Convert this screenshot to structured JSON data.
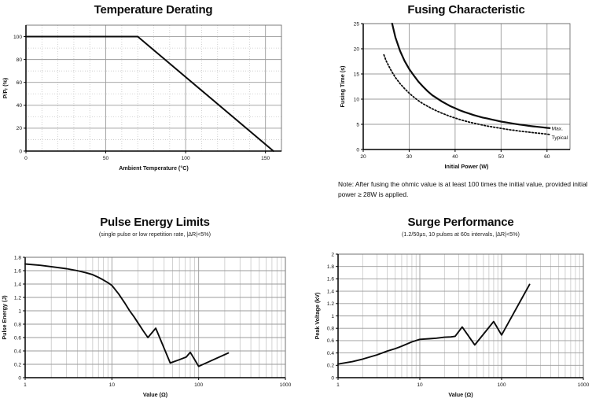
{
  "page": {
    "background": "#ffffff"
  },
  "colors": {
    "curve": "#0c0c0c",
    "grid_major": "#9b9b9b",
    "grid_minor": "#c7c7c7",
    "frame": "#6e6e6e",
    "axis": "#000000",
    "text": "#111111"
  },
  "chart_data": [
    {
      "type": "line",
      "title": "Temperature Derating",
      "subtitle": "",
      "xlabel": "Ambient Temperature (°C)",
      "ylabel": "P/Pᵣ (%)",
      "xscale": "linear",
      "xlim": [
        0,
        160
      ],
      "ylim": [
        0,
        110
      ],
      "xticks": [
        0,
        50,
        100,
        150
      ],
      "yticks": [
        0,
        20,
        40,
        60,
        80,
        100
      ],
      "x_minor_step": 10,
      "y_minor_step": 10,
      "grid_minor_style": "dotted",
      "series": [
        {
          "name": "derating-line",
          "style": "solid",
          "width": 2,
          "points": [
            [
              0,
              100
            ],
            [
              70,
              100
            ],
            [
              155,
              0
            ]
          ]
        }
      ],
      "annotations": []
    },
    {
      "type": "line",
      "title": "Fusing Characteristic",
      "subtitle": "",
      "xlabel": "Initial Power (W)",
      "ylabel": "Fusing Time (s)",
      "xscale": "linear",
      "xlim": [
        20,
        65
      ],
      "ylim": [
        0,
        25
      ],
      "xticks": [
        20,
        30,
        40,
        50,
        60
      ],
      "yticks": [
        0,
        5,
        10,
        15,
        20,
        25
      ],
      "series": [
        {
          "name": "max",
          "style": "solid",
          "width": 2.2,
          "points": [
            [
              26.3,
              25
            ],
            [
              27,
              22.3
            ],
            [
              28,
              19.6
            ],
            [
              29,
              17.6
            ],
            [
              30,
              16
            ],
            [
              31,
              14.7
            ],
            [
              32,
              13.5
            ],
            [
              33,
              12.5
            ],
            [
              34,
              11.6
            ],
            [
              35,
              10.8
            ],
            [
              36,
              10.2
            ],
            [
              37,
              9.6
            ],
            [
              38,
              9.1
            ],
            [
              39,
              8.6
            ],
            [
              40,
              8.2
            ],
            [
              41,
              7.8
            ],
            [
              42,
              7.45
            ],
            [
              43,
              7.15
            ],
            [
              44,
              6.85
            ],
            [
              45,
              6.6
            ],
            [
              46,
              6.35
            ],
            [
              47,
              6.15
            ],
            [
              48,
              5.95
            ],
            [
              49,
              5.75
            ],
            [
              50,
              5.55
            ],
            [
              51,
              5.4
            ],
            [
              52,
              5.25
            ],
            [
              53,
              5.1
            ],
            [
              54,
              4.95
            ],
            [
              55,
              4.85
            ],
            [
              56,
              4.7
            ],
            [
              57,
              4.6
            ],
            [
              58,
              4.5
            ],
            [
              59,
              4.4
            ],
            [
              60,
              4.3
            ],
            [
              60.6,
              4.25
            ]
          ]
        },
        {
          "name": "typical",
          "style": "dotted",
          "width": 1.8,
          "points": [
            [
              24.5,
              18.8
            ],
            [
              25,
              17.6
            ],
            [
              26,
              15.8
            ],
            [
              27,
              14.3
            ],
            [
              28,
              13.1
            ],
            [
              29,
              12.1
            ],
            [
              30,
              11.2
            ],
            [
              31,
              10.4
            ],
            [
              32,
              9.7
            ],
            [
              33,
              9.1
            ],
            [
              34,
              8.6
            ],
            [
              35,
              8.1
            ],
            [
              36,
              7.65
            ],
            [
              37,
              7.25
            ],
            [
              38,
              6.9
            ],
            [
              39,
              6.55
            ],
            [
              40,
              6.25
            ],
            [
              41,
              5.95
            ],
            [
              42,
              5.7
            ],
            [
              43,
              5.45
            ],
            [
              44,
              5.25
            ],
            [
              45,
              5.05
            ],
            [
              46,
              4.85
            ],
            [
              47,
              4.65
            ],
            [
              48,
              4.5
            ],
            [
              49,
              4.35
            ],
            [
              50,
              4.2
            ],
            [
              51,
              4.05
            ],
            [
              52,
              3.9
            ],
            [
              53,
              3.8
            ],
            [
              54,
              3.65
            ],
            [
              55,
              3.55
            ],
            [
              56,
              3.45
            ],
            [
              57,
              3.35
            ],
            [
              58,
              3.25
            ],
            [
              59,
              3.15
            ],
            [
              60,
              3.05
            ],
            [
              60.8,
              2.95
            ]
          ]
        }
      ],
      "annotations": [
        {
          "text": "Max.",
          "x": 61.0,
          "y": 4.15
        },
        {
          "text": "Typical",
          "x": 61.0,
          "y": 2.4
        }
      ],
      "note": "Note: After fusing the ohmic value is at least 100 times the initial value, provided initial power ≥ 28W is applied."
    },
    {
      "type": "line",
      "title": "Pulse Energy Limits",
      "subtitle": "(single pulse or low repetition rate, |ΔR|<5%)",
      "xlabel": "Value (Ω)",
      "ylabel": "Pulse Energy (J)",
      "xscale": "log",
      "xlim": [
        1,
        1000
      ],
      "ylim": [
        0,
        1.8
      ],
      "xticks": [
        1,
        10,
        100,
        1000
      ],
      "yticks": [
        0,
        0.2,
        0.4,
        0.6,
        0.8,
        1,
        1.2,
        1.4,
        1.6,
        1.8
      ],
      "series": [
        {
          "name": "pulse-energy",
          "style": "solid",
          "width": 1.9,
          "points": [
            [
              1,
              1.7
            ],
            [
              1.5,
              1.68
            ],
            [
              2,
              1.66
            ],
            [
              3,
              1.63
            ],
            [
              4,
              1.6
            ],
            [
              5,
              1.57
            ],
            [
              6,
              1.54
            ],
            [
              7,
              1.5
            ],
            [
              8,
              1.46
            ],
            [
              9,
              1.42
            ],
            [
              10,
              1.38
            ],
            [
              12,
              1.25
            ],
            [
              14,
              1.12
            ],
            [
              16,
              1.0
            ],
            [
              18,
              0.91
            ],
            [
              20,
              0.82
            ],
            [
              23,
              0.7
            ],
            [
              26,
              0.6
            ],
            [
              32,
              0.74
            ],
            [
              47,
              0.22
            ],
            [
              60,
              0.27
            ],
            [
              72,
              0.31
            ],
            [
              80,
              0.38
            ],
            [
              100,
              0.17
            ],
            [
              220,
              0.37
            ]
          ]
        }
      ],
      "annotations": []
    },
    {
      "type": "line",
      "title": "Surge Performance",
      "subtitle": "(1.2/50μs, 10 pulses at 60s intervals, |ΔR|<5%)",
      "xlabel": "Value (Ω)",
      "ylabel": "Peak Voltage (kV)",
      "xscale": "log",
      "xlim": [
        1,
        1000
      ],
      "ylim": [
        0,
        2
      ],
      "xticks": [
        1,
        10,
        100,
        1000
      ],
      "yticks": [
        0,
        0.2,
        0.4,
        0.6,
        0.8,
        1,
        1.2,
        1.4,
        1.6,
        1.8,
        2
      ],
      "series": [
        {
          "name": "peak-voltage",
          "style": "solid",
          "width": 1.9,
          "points": [
            [
              1,
              0.22
            ],
            [
              1.5,
              0.26
            ],
            [
              2,
              0.3
            ],
            [
              3,
              0.37
            ],
            [
              4,
              0.43
            ],
            [
              5,
              0.47
            ],
            [
              6,
              0.51
            ],
            [
              8,
              0.58
            ],
            [
              10,
              0.62
            ],
            [
              13,
              0.63
            ],
            [
              16,
              0.64
            ],
            [
              20,
              0.655
            ],
            [
              24,
              0.66
            ],
            [
              27,
              0.67
            ],
            [
              33,
              0.82
            ],
            [
              47,
              0.53
            ],
            [
              80,
              0.91
            ],
            [
              100,
              0.69
            ],
            [
              220,
              1.51
            ]
          ]
        }
      ],
      "annotations": []
    }
  ]
}
